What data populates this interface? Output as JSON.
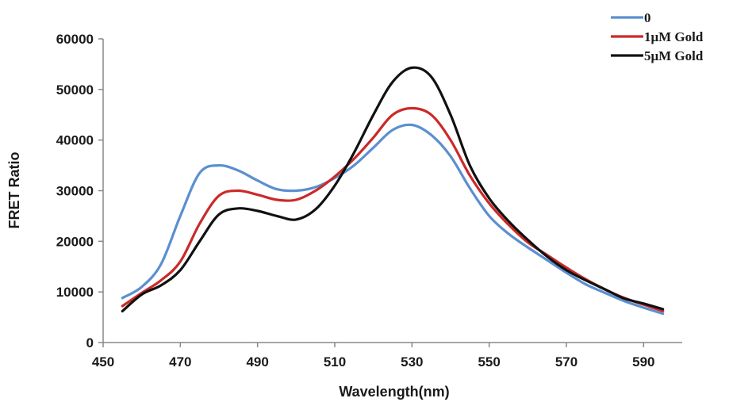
{
  "chart_data": {
    "type": "line",
    "xlabel": "Wavelength(nm)",
    "ylabel": "FRET Ratio",
    "xlim": [
      450,
      600
    ],
    "ylim": [
      0,
      60000
    ],
    "xticks": [
      450,
      470,
      490,
      510,
      530,
      550,
      570,
      590
    ],
    "yticks": [
      0,
      10000,
      20000,
      30000,
      40000,
      50000,
      60000
    ],
    "grid": false,
    "legend_position": "top-right",
    "series": [
      {
        "name": "0",
        "color": "#5b8fd0",
        "x": [
          455,
          460,
          465,
          470,
          475,
          480,
          485,
          490,
          495,
          500,
          505,
          510,
          515,
          520,
          525,
          530,
          535,
          540,
          545,
          550,
          555,
          560,
          565,
          570,
          575,
          580,
          585,
          590,
          595
        ],
        "values": [
          8800,
          11000,
          15500,
          25000,
          33500,
          35000,
          34000,
          32000,
          30300,
          30000,
          30700,
          32500,
          35000,
          38500,
          42000,
          43000,
          41000,
          36800,
          30500,
          25000,
          21500,
          18800,
          16300,
          13800,
          11500,
          9800,
          8200,
          6900,
          5700
        ]
      },
      {
        "name": "1μM Gold",
        "color": "#cc2929",
        "x": [
          455,
          460,
          465,
          470,
          475,
          480,
          485,
          490,
          495,
          500,
          505,
          510,
          515,
          520,
          525,
          530,
          535,
          540,
          545,
          550,
          555,
          560,
          565,
          570,
          575,
          580,
          585,
          590,
          595
        ],
        "values": [
          7200,
          9800,
          12300,
          16000,
          23500,
          29000,
          30000,
          29200,
          28200,
          28200,
          30000,
          32800,
          36300,
          40500,
          45000,
          46300,
          45000,
          40000,
          33000,
          27500,
          23300,
          19800,
          17300,
          14800,
          12500,
          10500,
          8800,
          7500,
          6200
        ]
      },
      {
        "name": "5μM Gold",
        "color": "#111111",
        "x": [
          455,
          460,
          465,
          470,
          475,
          480,
          485,
          490,
          495,
          500,
          505,
          510,
          515,
          520,
          525,
          530,
          535,
          540,
          545,
          550,
          555,
          560,
          565,
          570,
          575,
          580,
          585,
          590,
          595
        ],
        "values": [
          6200,
          9500,
          11300,
          14300,
          20000,
          25300,
          26500,
          26000,
          25000,
          24300,
          26300,
          31000,
          37500,
          45000,
          51500,
          54300,
          52500,
          45000,
          35000,
          28500,
          24000,
          20300,
          17000,
          14300,
          12300,
          10500,
          8700,
          7700,
          6600
        ]
      }
    ]
  }
}
